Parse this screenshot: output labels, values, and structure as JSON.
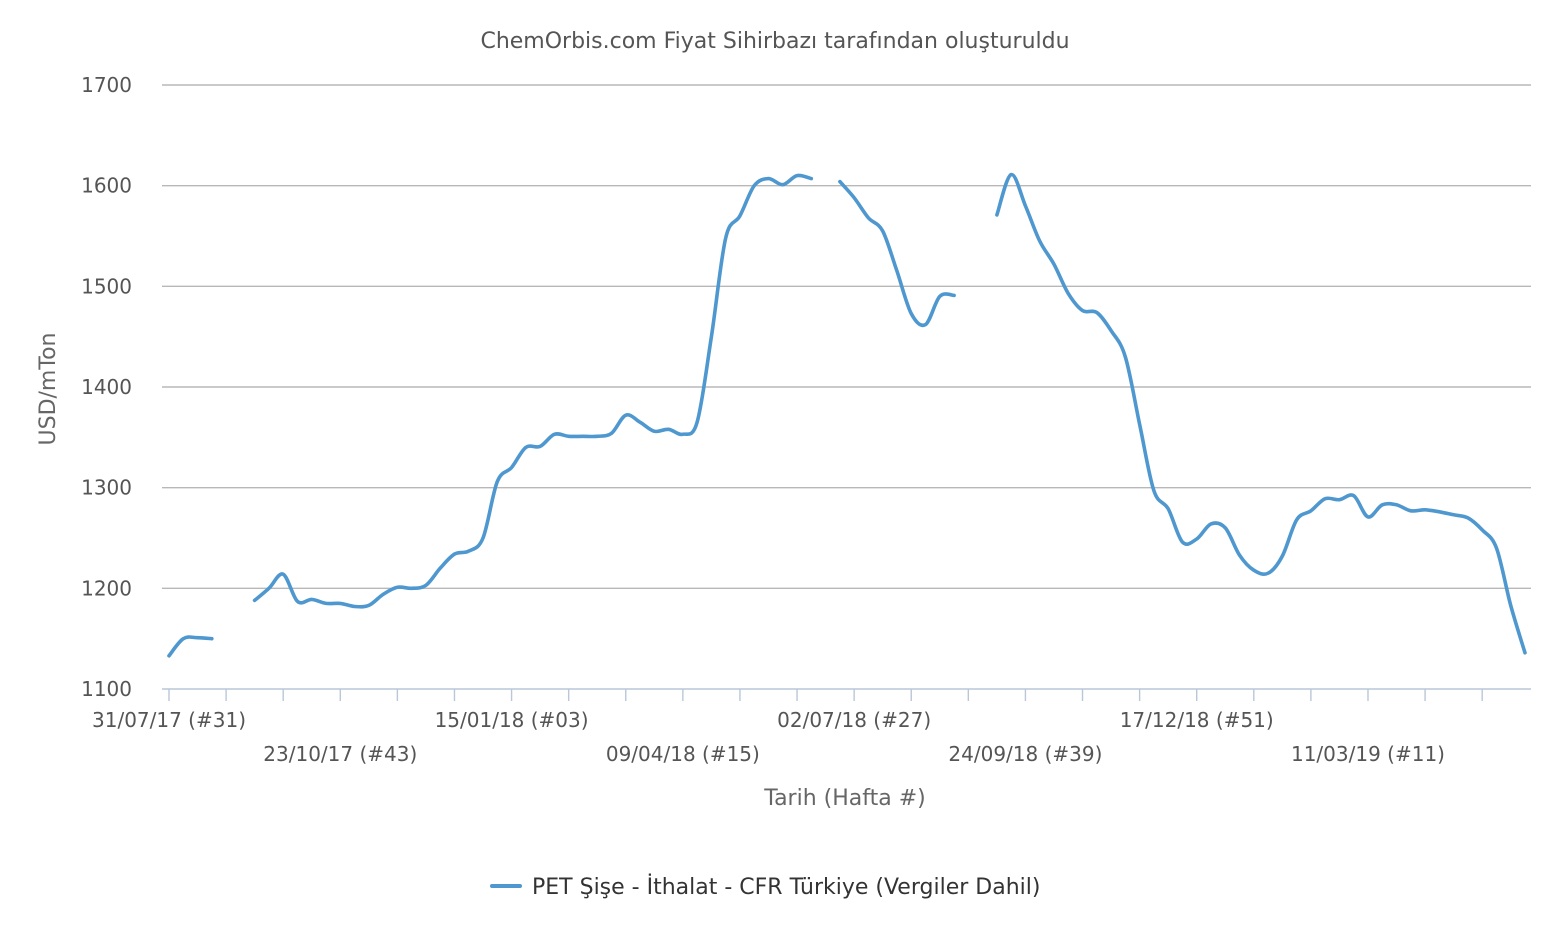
{
  "chart_data": {
    "type": "line",
    "title": "ChemOrbis.com Fiyat Sihirbazı tarafından oluşturuldu",
    "xlabel": "Tarih (Hafta #)",
    "ylabel": "USD/mTon",
    "ylim": [
      1100,
      1700
    ],
    "yticks": [
      "1100",
      "1200",
      "1300",
      "1400",
      "1500",
      "1600",
      "1700"
    ],
    "grid": true,
    "legend_position": "bottom-center",
    "x_start_date": "2017-07-31",
    "x_end_date": "2019-05-27",
    "x_tick_labels": [
      {
        "label": "31/07/17 (#31)",
        "date": "2017-07-31"
      },
      {
        "label": "23/10/17 (#43)",
        "date": "2017-10-23"
      },
      {
        "label": "15/01/18 (#03)",
        "date": "2018-01-15"
      },
      {
        "label": "09/04/18 (#15)",
        "date": "2018-04-09"
      },
      {
        "label": "02/07/18 (#27)",
        "date": "2018-07-02"
      },
      {
        "label": "24/09/18 (#39)",
        "date": "2018-09-24"
      },
      {
        "label": "17/12/18 (#51)",
        "date": "2018-12-17"
      },
      {
        "label": "11/03/19 (#11)",
        "date": "2019-03-11"
      }
    ],
    "series": [
      {
        "name": "PET Şişe - İthalat - CFR Türkiye (Vergiler Dahil)",
        "color": "#4f98cf",
        "segments": [
          [
            [
              "2017-07-31",
              1133
            ],
            [
              "2017-08-07",
              1150
            ],
            [
              "2017-08-14",
              1151
            ],
            [
              "2017-08-21",
              1150
            ]
          ],
          [
            [
              "2017-09-11",
              1188
            ],
            [
              "2017-09-18",
              1200
            ],
            [
              "2017-09-25",
              1214
            ],
            [
              "2017-10-02",
              1187
            ],
            [
              "2017-10-09",
              1189
            ],
            [
              "2017-10-16",
              1185
            ],
            [
              "2017-10-23",
              1185
            ],
            [
              "2017-10-30",
              1182
            ],
            [
              "2017-11-06",
              1183
            ],
            [
              "2017-11-13",
              1194
            ],
            [
              "2017-11-20",
              1201
            ],
            [
              "2017-11-27",
              1200
            ],
            [
              "2017-12-04",
              1203
            ],
            [
              "2017-12-11",
              1220
            ],
            [
              "2017-12-18",
              1234
            ],
            [
              "2017-12-25",
              1237
            ],
            [
              "2018-01-01",
              1250
            ],
            [
              "2018-01-08",
              1306
            ],
            [
              "2018-01-15",
              1320
            ],
            [
              "2018-01-22",
              1340
            ],
            [
              "2018-01-29",
              1341
            ],
            [
              "2018-02-05",
              1353
            ],
            [
              "2018-02-12",
              1351
            ],
            [
              "2018-02-19",
              1351
            ],
            [
              "2018-02-26",
              1351
            ],
            [
              "2018-03-05",
              1354
            ],
            [
              "2018-03-12",
              1372
            ],
            [
              "2018-03-19",
              1365
            ],
            [
              "2018-03-26",
              1356
            ],
            [
              "2018-04-02",
              1358
            ],
            [
              "2018-04-09",
              1353
            ],
            [
              "2018-04-16",
              1365
            ],
            [
              "2018-04-23",
              1450
            ],
            [
              "2018-04-30",
              1548
            ],
            [
              "2018-05-07",
              1570
            ],
            [
              "2018-05-14",
              1600
            ],
            [
              "2018-05-21",
              1607
            ],
            [
              "2018-05-28",
              1601
            ],
            [
              "2018-06-04",
              1610
            ],
            [
              "2018-06-11",
              1607
            ]
          ],
          [
            [
              "2018-06-25",
              1604
            ],
            [
              "2018-07-02",
              1588
            ],
            [
              "2018-07-09",
              1568
            ],
            [
              "2018-07-16",
              1555
            ],
            [
              "2018-07-23",
              1515
            ],
            [
              "2018-07-30",
              1473
            ],
            [
              "2018-08-06",
              1462
            ],
            [
              "2018-08-13",
              1490
            ],
            [
              "2018-08-20",
              1491
            ]
          ],
          [
            [
              "2018-09-10",
              1571
            ],
            [
              "2018-09-17",
              1611
            ],
            [
              "2018-09-24",
              1580
            ],
            [
              "2018-10-01",
              1545
            ],
            [
              "2018-10-08",
              1522
            ],
            [
              "2018-10-15",
              1493
            ],
            [
              "2018-10-22",
              1476
            ],
            [
              "2018-10-29",
              1474
            ],
            [
              "2018-11-05",
              1456
            ],
            [
              "2018-11-12",
              1430
            ],
            [
              "2018-11-19",
              1363
            ],
            [
              "2018-11-26",
              1297
            ],
            [
              "2018-12-03",
              1279
            ],
            [
              "2018-12-10",
              1246
            ],
            [
              "2018-12-17",
              1249
            ],
            [
              "2018-12-24",
              1264
            ],
            [
              "2018-12-31",
              1260
            ],
            [
              "2019-01-07",
              1233
            ],
            [
              "2019-01-14",
              1218
            ],
            [
              "2019-01-21",
              1215
            ],
            [
              "2019-01-28",
              1232
            ],
            [
              "2019-02-04",
              1268
            ],
            [
              "2019-02-11",
              1277
            ],
            [
              "2019-02-18",
              1289
            ],
            [
              "2019-02-25",
              1288
            ],
            [
              "2019-03-04",
              1292
            ],
            [
              "2019-03-11",
              1271
            ],
            [
              "2019-03-18",
              1283
            ],
            [
              "2019-03-25",
              1283
            ],
            [
              "2019-04-01",
              1277
            ],
            [
              "2019-04-08",
              1278
            ],
            [
              "2019-04-15",
              1276
            ],
            [
              "2019-04-22",
              1273
            ],
            [
              "2019-04-29",
              1270
            ],
            [
              "2019-05-06",
              1258
            ],
            [
              "2019-05-13",
              1240
            ],
            [
              "2019-05-20",
              1183
            ],
            [
              "2019-05-27",
              1136
            ]
          ]
        ]
      }
    ]
  }
}
